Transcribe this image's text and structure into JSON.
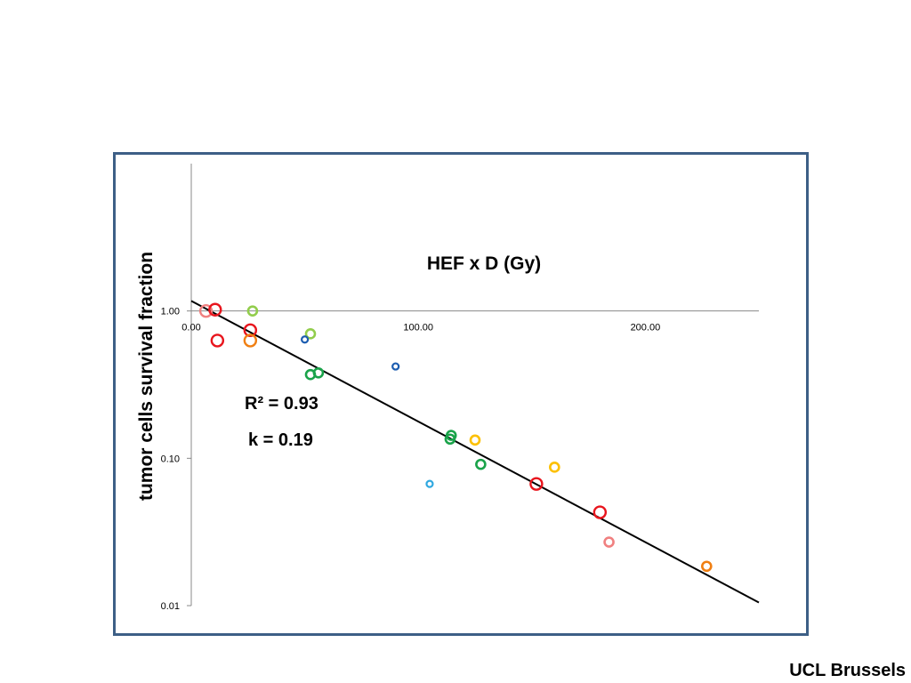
{
  "footer": {
    "credit": "UCL Brussels"
  },
  "chart_data": {
    "type": "scatter",
    "xlabel": "HEF x D (Gy)",
    "ylabel": "tumor cells survival fraction",
    "x_ticks": [
      "0.00",
      "100.00",
      "200.00"
    ],
    "y_ticks": [
      "1.00",
      "0.10",
      "0.01"
    ],
    "xlim": [
      0,
      250
    ],
    "ylim": [
      0.01,
      10
    ],
    "y_scale": "log",
    "grid": false,
    "annotations": {
      "r2_label": "R² = 0.93",
      "k_label": "k  = 0.19"
    },
    "fit": {
      "type": "exponential",
      "k": 0.19,
      "r2": 0.93,
      "x0": 0,
      "y0": 1.17,
      "x1": 250,
      "y1": 0.0105
    },
    "points": [
      {
        "x": 6.5,
        "y": 1.0,
        "color": "#f08080",
        "size": "large"
      },
      {
        "x": 10.5,
        "y": 1.02,
        "color": "#e8151d",
        "size": "large"
      },
      {
        "x": 11.5,
        "y": 0.63,
        "color": "#e8151d",
        "size": "large"
      },
      {
        "x": 26.0,
        "y": 0.74,
        "color": "#e8151d",
        "size": "large"
      },
      {
        "x": 26.0,
        "y": 0.63,
        "color": "#f07f12",
        "size": "large"
      },
      {
        "x": 27.0,
        "y": 1.0,
        "color": "#92cd4c",
        "size": "medium"
      },
      {
        "x": 52.5,
        "y": 0.7,
        "color": "#92cd4c",
        "size": "medium"
      },
      {
        "x": 50.0,
        "y": 0.64,
        "color": "#1c5db0",
        "size": "small"
      },
      {
        "x": 52.5,
        "y": 0.37,
        "color": "#1aa34a",
        "size": "medium"
      },
      {
        "x": 56.0,
        "y": 0.38,
        "color": "#1aa34a",
        "size": "medium"
      },
      {
        "x": 90.0,
        "y": 0.42,
        "color": "#1c5db0",
        "size": "small"
      },
      {
        "x": 105.0,
        "y": 0.067,
        "color": "#30a8e0",
        "size": "small"
      },
      {
        "x": 114.0,
        "y": 0.135,
        "color": "#1aa34a",
        "size": "medium"
      },
      {
        "x": 114.5,
        "y": 0.143,
        "color": "#1aa34a",
        "size": "medium"
      },
      {
        "x": 125.0,
        "y": 0.133,
        "color": "#fcc000",
        "size": "medium"
      },
      {
        "x": 127.5,
        "y": 0.091,
        "color": "#1aa34a",
        "size": "medium"
      },
      {
        "x": 152.0,
        "y": 0.067,
        "color": "#e8151d",
        "size": "large"
      },
      {
        "x": 160.0,
        "y": 0.087,
        "color": "#fcc000",
        "size": "medium"
      },
      {
        "x": 180.0,
        "y": 0.043,
        "color": "#e8151d",
        "size": "large"
      },
      {
        "x": 184.0,
        "y": 0.027,
        "color": "#f08080",
        "size": "medium"
      },
      {
        "x": 227.0,
        "y": 0.0185,
        "color": "#f07f12",
        "size": "medium"
      }
    ]
  }
}
